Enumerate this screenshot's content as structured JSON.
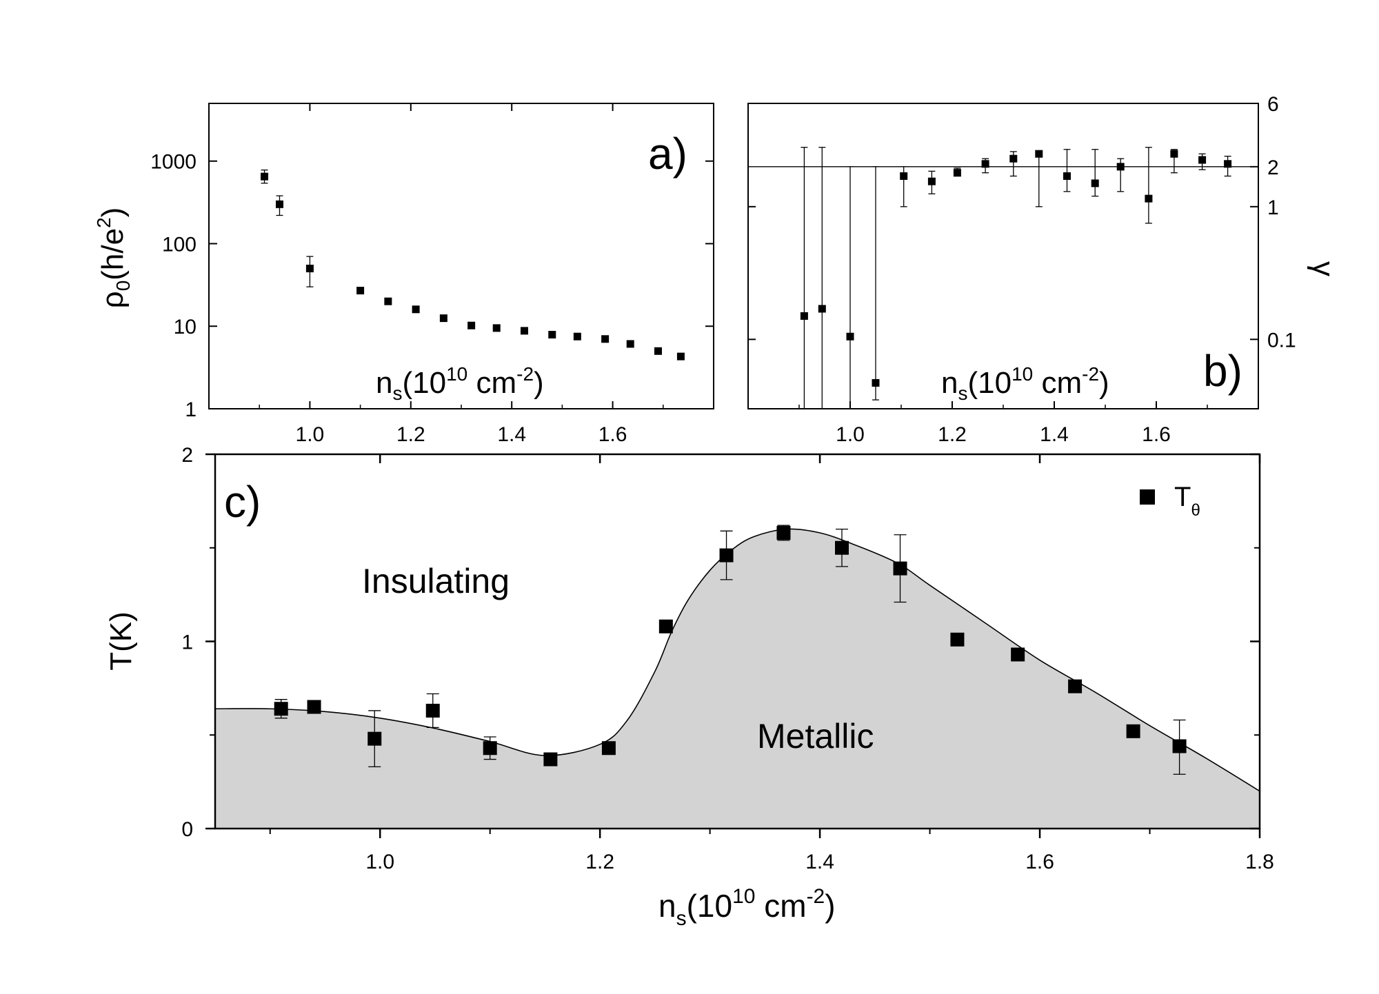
{
  "chart_data": [
    {
      "panel": "a)",
      "type": "scatter",
      "yscale": "log",
      "ylabel": "ρ0(h/e2)",
      "xlabel": "ns(1010 cm-2)",
      "xlim": [
        0.8,
        1.8
      ],
      "ylim": [
        1,
        5000
      ],
      "xticks": [
        "1.0",
        "1.2",
        "1.4",
        "1.6"
      ],
      "yticks": [
        "1",
        "10",
        "100",
        "1000"
      ],
      "points": [
        {
          "x": 0.91,
          "y": 650,
          "lo": 540,
          "hi": 780
        },
        {
          "x": 0.94,
          "y": 300,
          "lo": 220,
          "hi": 380
        },
        {
          "x": 1.0,
          "y": 50,
          "lo": 30,
          "hi": 70
        },
        {
          "x": 1.1,
          "y": 27
        },
        {
          "x": 1.155,
          "y": 20
        },
        {
          "x": 1.21,
          "y": 16
        },
        {
          "x": 1.265,
          "y": 12.5
        },
        {
          "x": 1.32,
          "y": 10.2
        },
        {
          "x": 1.37,
          "y": 9.5
        },
        {
          "x": 1.425,
          "y": 8.8
        },
        {
          "x": 1.48,
          "y": 7.9
        },
        {
          "x": 1.53,
          "y": 7.5
        },
        {
          "x": 1.585,
          "y": 7.0
        },
        {
          "x": 1.635,
          "y": 6.1
        },
        {
          "x": 1.69,
          "y": 5.0
        },
        {
          "x": 1.735,
          "y": 4.3
        }
      ]
    },
    {
      "panel": "b)",
      "type": "scatter",
      "yscale": "log",
      "ylabel": "γ",
      "xlabel": "ns(1010 cm-2)",
      "xlim": [
        0.8,
        1.8
      ],
      "ylim": [
        0.03,
        6
      ],
      "xticks": [
        "1.0",
        "1.2",
        "1.4",
        "1.6"
      ],
      "yticks": [
        "0.1",
        "1",
        "2",
        "6"
      ],
      "reference_line_y": 2,
      "points": [
        {
          "x": 0.91,
          "y": 0.15,
          "lo": 0.03,
          "hi": 2.8
        },
        {
          "x": 0.945,
          "y": 0.17,
          "lo": 0.03,
          "hi": 2.8
        },
        {
          "x": 1.0,
          "y": 0.105,
          "lo": 0.03,
          "hi": 2
        },
        {
          "x": 1.05,
          "y": 0.047,
          "lo": 0.035,
          "hi": 2
        },
        {
          "x": 1.105,
          "y": 1.7,
          "lo": 1.0,
          "hi": 2.0
        },
        {
          "x": 1.16,
          "y": 1.55,
          "lo": 1.25,
          "hi": 1.85
        },
        {
          "x": 1.21,
          "y": 1.8,
          "lo": 1.7,
          "hi": 1.95
        },
        {
          "x": 1.265,
          "y": 2.1,
          "lo": 1.8,
          "hi": 2.3
        },
        {
          "x": 1.32,
          "y": 2.3,
          "lo": 1.7,
          "hi": 2.6
        },
        {
          "x": 1.37,
          "y": 2.5,
          "lo": 1.0,
          "hi": 2.6
        },
        {
          "x": 1.425,
          "y": 1.7,
          "lo": 1.3,
          "hi": 2.7
        },
        {
          "x": 1.48,
          "y": 1.5,
          "lo": 1.2,
          "hi": 2.7
        },
        {
          "x": 1.53,
          "y": 2.0,
          "lo": 1.3,
          "hi": 2.3
        },
        {
          "x": 1.585,
          "y": 1.15,
          "lo": 0.75,
          "hi": 2.8
        },
        {
          "x": 1.635,
          "y": 2.5,
          "lo": 1.8,
          "hi": 2.7
        },
        {
          "x": 1.69,
          "y": 2.25,
          "lo": 1.9,
          "hi": 2.5
        },
        {
          "x": 1.74,
          "y": 2.1,
          "lo": 1.7,
          "hi": 2.4
        }
      ]
    },
    {
      "panel": "c)",
      "type": "scatter",
      "ylabel": "T(K)",
      "xlabel": "ns(1010 cm-2)",
      "xlim": [
        0.85,
        1.8
      ],
      "ylim": [
        0,
        2
      ],
      "xticks": [
        "1.0",
        "1.2",
        "1.4",
        "1.6",
        "1.8"
      ],
      "yticks": [
        "0",
        "1",
        "2"
      ],
      "legend": "Tθ",
      "legend_position": "top-right",
      "regions": [
        "Insulating",
        "Metallic"
      ],
      "boundary_curve": [
        [
          0.85,
          0.64
        ],
        [
          0.9,
          0.64
        ],
        [
          0.95,
          0.625
        ],
        [
          1.0,
          0.59
        ],
        [
          1.05,
          0.535
        ],
        [
          1.1,
          0.465
        ],
        [
          1.15,
          0.39
        ],
        [
          1.2,
          0.45
        ],
        [
          1.225,
          0.58
        ],
        [
          1.25,
          0.84
        ],
        [
          1.265,
          1.05
        ],
        [
          1.28,
          1.22
        ],
        [
          1.3,
          1.38
        ],
        [
          1.32,
          1.49
        ],
        [
          1.34,
          1.56
        ],
        [
          1.37,
          1.6
        ],
        [
          1.4,
          1.58
        ],
        [
          1.43,
          1.52
        ],
        [
          1.47,
          1.42
        ],
        [
          1.5,
          1.3
        ],
        [
          1.55,
          1.1
        ],
        [
          1.6,
          0.9
        ],
        [
          1.65,
          0.73
        ],
        [
          1.7,
          0.55
        ],
        [
          1.75,
          0.38
        ],
        [
          1.8,
          0.2
        ]
      ],
      "points": [
        {
          "x": 0.91,
          "y": 0.64,
          "lo": 0.59,
          "hi": 0.69
        },
        {
          "x": 0.94,
          "y": 0.65
        },
        {
          "x": 0.995,
          "y": 0.48,
          "lo": 0.33,
          "hi": 0.63
        },
        {
          "x": 1.048,
          "y": 0.63,
          "lo": 0.54,
          "hi": 0.72
        },
        {
          "x": 1.1,
          "y": 0.43,
          "lo": 0.37,
          "hi": 0.49
        },
        {
          "x": 1.155,
          "y": 0.37
        },
        {
          "x": 1.208,
          "y": 0.43
        },
        {
          "x": 1.26,
          "y": 1.08
        },
        {
          "x": 1.315,
          "y": 1.46,
          "lo": 1.33,
          "hi": 1.59
        },
        {
          "x": 1.367,
          "y": 1.58,
          "lo": 1.54,
          "hi": 1.62
        },
        {
          "x": 1.42,
          "y": 1.5,
          "lo": 1.4,
          "hi": 1.6
        },
        {
          "x": 1.473,
          "y": 1.39,
          "lo": 1.21,
          "hi": 1.57
        },
        {
          "x": 1.525,
          "y": 1.01
        },
        {
          "x": 1.58,
          "y": 0.93
        },
        {
          "x": 1.632,
          "y": 0.76
        },
        {
          "x": 1.685,
          "y": 0.52
        },
        {
          "x": 1.727,
          "y": 0.44,
          "lo": 0.29,
          "hi": 0.58
        }
      ]
    }
  ]
}
